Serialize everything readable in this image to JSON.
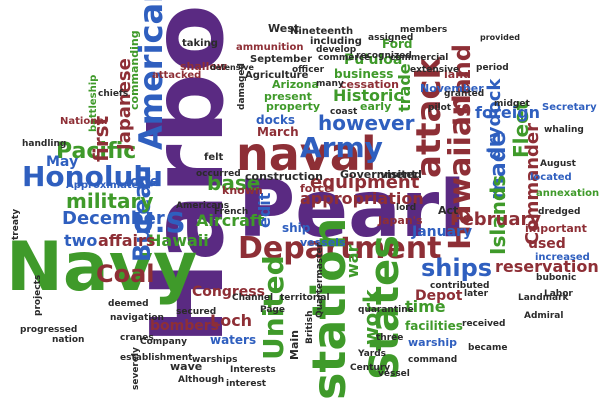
{
  "colors": {
    "purple": "#5a2a82",
    "crimson": "#8e2f36",
    "blue": "#2f5fbf",
    "green": "#3f9a2a",
    "dark": "#2b2b2b"
  },
  "words": [
    {
      "text": "Harbor",
      "color": "purple"
    },
    {
      "text": "Pearl",
      "color": "purple"
    },
    {
      "text": "Navy",
      "color": "green"
    },
    {
      "text": "naval",
      "color": "crimson"
    },
    {
      "text": "Department",
      "color": "crimson"
    },
    {
      "text": "station",
      "color": "green"
    },
    {
      "text": "States",
      "color": "green"
    },
    {
      "text": "Honolulu",
      "color": "blue"
    },
    {
      "text": "Hawaiian",
      "color": "crimson"
    },
    {
      "text": "attack",
      "color": "crimson"
    },
    {
      "text": "United",
      "color": "green"
    },
    {
      "text": "American",
      "color": "blue"
    },
    {
      "text": "Army",
      "color": "blue"
    },
    {
      "text": "U.S",
      "color": "blue"
    },
    {
      "text": "ships",
      "color": "blue"
    },
    {
      "text": "Island",
      "color": "crimson"
    },
    {
      "text": "Coal",
      "color": "crimson"
    },
    {
      "text": "Pacific",
      "color": "green"
    },
    {
      "text": "Bureau",
      "color": "blue"
    },
    {
      "text": "work",
      "color": "green"
    },
    {
      "text": "made",
      "color": "blue"
    },
    {
      "text": "Islands",
      "color": "green"
    },
    {
      "text": "drydock",
      "color": "blue"
    },
    {
      "text": "Fleet",
      "color": "green"
    },
    {
      "text": "Commander",
      "color": "crimson"
    },
    {
      "text": "Historic",
      "color": "green"
    },
    {
      "text": "however",
      "color": "blue"
    },
    {
      "text": "equipment",
      "color": "crimson"
    },
    {
      "text": "military",
      "color": "green"
    },
    {
      "text": "Japanese",
      "color": "crimson"
    },
    {
      "text": "first",
      "color": "crimson"
    },
    {
      "text": "December",
      "color": "blue"
    },
    {
      "text": "base",
      "color": "green"
    },
    {
      "text": "appropriation",
      "color": "crimson"
    },
    {
      "text": "February",
      "color": "crimson"
    },
    {
      "text": "reservation",
      "color": "crimson"
    },
    {
      "text": "trade",
      "color": "green"
    },
    {
      "text": "Hawaii",
      "color": "green"
    },
    {
      "text": "affairs",
      "color": "crimson"
    },
    {
      "text": "two",
      "color": "blue"
    },
    {
      "text": "Aircraft",
      "color": "green"
    },
    {
      "text": "one",
      "color": "blue"
    },
    {
      "text": "May",
      "color": "blue"
    },
    {
      "text": "Loch",
      "color": "crimson"
    },
    {
      "text": "Congress",
      "color": "crimson"
    },
    {
      "text": "foreign",
      "color": "blue"
    },
    {
      "text": "used",
      "color": "crimson"
    },
    {
      "text": "time",
      "color": "green"
    },
    {
      "text": "Depot",
      "color": "crimson"
    },
    {
      "text": "January",
      "color": "blue"
    },
    {
      "text": "war",
      "color": "green"
    },
    {
      "text": "edit",
      "color": "blue"
    },
    {
      "text": "bombers",
      "color": "crimson"
    },
    {
      "text": "facilities",
      "color": "green"
    },
    {
      "text": "waters",
      "color": "blue"
    },
    {
      "text": "business",
      "color": "green"
    },
    {
      "text": "Pu'uloa",
      "color": "green"
    },
    {
      "text": "Government",
      "color": "dark"
    },
    {
      "text": "construction",
      "color": "dark"
    },
    {
      "text": "force",
      "color": "crimson"
    },
    {
      "text": "visited",
      "color": "dark"
    },
    {
      "text": "ship",
      "color": "blue"
    },
    {
      "text": "Main",
      "color": "dark"
    },
    {
      "text": "West",
      "color": "dark"
    },
    {
      "text": "Ford",
      "color": "green"
    },
    {
      "text": "Arizona",
      "color": "green"
    },
    {
      "text": "cessation",
      "color": "crimson"
    },
    {
      "text": "early",
      "color": "green"
    },
    {
      "text": "property",
      "color": "green"
    },
    {
      "text": "docks",
      "color": "blue"
    },
    {
      "text": "March",
      "color": "crimson"
    },
    {
      "text": "present",
      "color": "green"
    },
    {
      "text": "known",
      "color": "crimson"
    },
    {
      "text": "land",
      "color": "crimson"
    },
    {
      "text": "Japan's",
      "color": "crimson"
    },
    {
      "text": "November",
      "color": "blue"
    },
    {
      "text": "warship",
      "color": "blue"
    },
    {
      "text": "vessels",
      "color": "blue"
    },
    {
      "text": "Approximately",
      "color": "blue"
    },
    {
      "text": "commanding",
      "color": "green"
    },
    {
      "text": "taking",
      "color": "dark"
    },
    {
      "text": "Secretary",
      "color": "blue"
    },
    {
      "text": "annexation",
      "color": "green"
    },
    {
      "text": "important",
      "color": "crimson"
    },
    {
      "text": "increased",
      "color": "blue"
    },
    {
      "text": "located",
      "color": "blue"
    },
    {
      "text": "including",
      "color": "dark"
    },
    {
      "text": "September",
      "color": "dark"
    },
    {
      "text": "Nineteenth",
      "color": "dark"
    },
    {
      "text": "Agriculture",
      "color": "dark"
    },
    {
      "text": "ammunition",
      "color": "crimson"
    },
    {
      "text": "shallow",
      "color": "crimson"
    },
    {
      "text": "battleship",
      "color": "green"
    },
    {
      "text": "handling",
      "color": "dark"
    },
    {
      "text": "projects",
      "color": "dark"
    },
    {
      "text": "progressed",
      "color": "dark"
    },
    {
      "text": "attacked",
      "color": "crimson"
    },
    {
      "text": "Americans",
      "color": "dark"
    },
    {
      "text": "French",
      "color": "dark"
    },
    {
      "text": "Landmark",
      "color": "dark"
    },
    {
      "text": "commerce",
      "color": "dark"
    },
    {
      "text": "Admiral",
      "color": "dark"
    },
    {
      "text": "whaling",
      "color": "dark"
    },
    {
      "text": "August",
      "color": "dark"
    },
    {
      "text": "bubonic",
      "color": "dark"
    },
    {
      "text": "chiefs",
      "color": "dark"
    },
    {
      "text": "National",
      "color": "crimson"
    },
    {
      "text": "Quartermaster",
      "color": "dark"
    },
    {
      "text": "British",
      "color": "dark"
    },
    {
      "text": "navigation",
      "color": "dark"
    },
    {
      "text": "establishment",
      "color": "dark"
    },
    {
      "text": "severely",
      "color": "dark"
    },
    {
      "text": "warships",
      "color": "dark"
    },
    {
      "text": "Although",
      "color": "dark"
    },
    {
      "text": "interest",
      "color": "dark"
    },
    {
      "text": "wave",
      "color": "dark"
    },
    {
      "text": "vessel",
      "color": "dark"
    },
    {
      "text": "command",
      "color": "dark"
    },
    {
      "text": "received",
      "color": "dark"
    },
    {
      "text": "Page",
      "color": "dark"
    },
    {
      "text": "became",
      "color": "dark"
    },
    {
      "text": "coast",
      "color": "dark"
    },
    {
      "text": "recognized",
      "color": "dark"
    },
    {
      "text": "assigned",
      "color": "dark"
    },
    {
      "text": "develop",
      "color": "dark"
    },
    {
      "text": "commercial",
      "color": "dark"
    },
    {
      "text": "extensive",
      "color": "dark"
    },
    {
      "text": "period",
      "color": "dark"
    },
    {
      "text": "granted",
      "color": "dark"
    },
    {
      "text": "midget",
      "color": "dark"
    },
    {
      "text": "treaty",
      "color": "dark"
    },
    {
      "text": "deemed",
      "color": "dark"
    },
    {
      "text": "secured",
      "color": "dark"
    },
    {
      "text": "territorial",
      "color": "dark"
    },
    {
      "text": "contributed",
      "color": "dark"
    },
    {
      "text": "quarantine",
      "color": "dark"
    },
    {
      "text": "Century",
      "color": "dark"
    },
    {
      "text": "Interests",
      "color": "dark"
    },
    {
      "text": "occurred",
      "color": "dark"
    },
    {
      "text": "officer",
      "color": "dark"
    },
    {
      "text": "members",
      "color": "dark"
    },
    {
      "text": "Channel",
      "color": "dark"
    },
    {
      "text": "dredged",
      "color": "dark"
    },
    {
      "text": "Labor",
      "color": "dark"
    },
    {
      "text": "Company",
      "color": "dark"
    },
    {
      "text": "felt",
      "color": "dark"
    },
    {
      "text": "damaged",
      "color": "dark"
    },
    {
      "text": "cranes",
      "color": "dark"
    },
    {
      "text": "nation",
      "color": "dark"
    },
    {
      "text": "lord",
      "color": "dark"
    },
    {
      "text": "defensive",
      "color": "dark"
    },
    {
      "text": "provided",
      "color": "dark"
    },
    {
      "text": "later",
      "color": "dark"
    },
    {
      "text": "three",
      "color": "dark"
    },
    {
      "text": "many",
      "color": "dark"
    },
    {
      "text": "Yards",
      "color": "dark"
    },
    {
      "text": "pilot",
      "color": "dark"
    },
    {
      "text": "Act",
      "color": "dark"
    }
  ]
}
